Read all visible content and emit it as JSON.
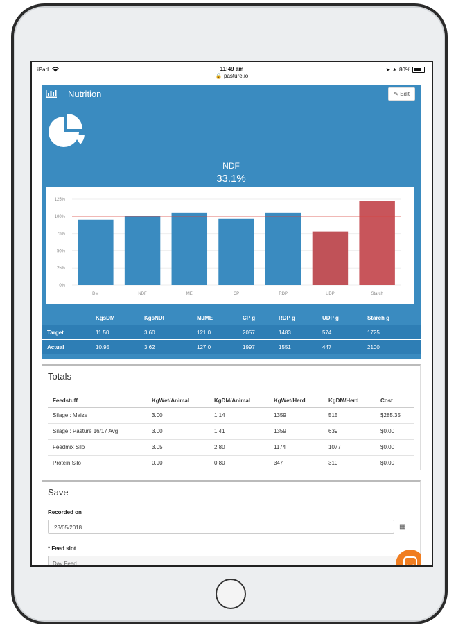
{
  "status_bar": {
    "carrier": "iPad",
    "time": "11:49 am",
    "url": "pasture.io",
    "battery": "80%"
  },
  "panel": {
    "title": "Nutrition",
    "edit_label": "Edit",
    "metric_name": "NDF",
    "metric_value": "33.1%"
  },
  "chart_data": {
    "type": "bar",
    "categories": [
      "DM",
      "NDF",
      "ME",
      "CP",
      "RDP",
      "UDP",
      "Starch"
    ],
    "values": [
      95,
      100,
      105,
      97,
      105,
      78,
      122
    ],
    "bar_colors": [
      "#3a8bc0",
      "#3a8bc0",
      "#3a8bc0",
      "#3a8bc0",
      "#3a8bc0",
      "#c05258",
      "#c8555b"
    ],
    "reference_line": 100,
    "reference_color": "#d9443c",
    "y_ticks": [
      "0%",
      "25%",
      "50%",
      "75%",
      "100%",
      "125%"
    ],
    "ylim": [
      0,
      125
    ]
  },
  "targets_table": {
    "headers": [
      "KgsDM",
      "KgsNDF",
      "MJME",
      "CP g",
      "RDP g",
      "UDP g",
      "Starch g"
    ],
    "rows": [
      {
        "label": "Target",
        "values": [
          "11.50",
          "3.60",
          "121.0",
          "2057",
          "1483",
          "574",
          "1725"
        ]
      },
      {
        "label": "Actual",
        "values": [
          "10.95",
          "3.62",
          "127.0",
          "1997",
          "1551",
          "447",
          "2100"
        ]
      }
    ]
  },
  "totals": {
    "title": "Totals",
    "headers": [
      "Feedstuff",
      "KgWet/Animal",
      "KgDM/Animal",
      "KgWet/Herd",
      "KgDM/Herd",
      "Cost"
    ],
    "rows": [
      [
        "Silage : Maize",
        "3.00",
        "1.14",
        "1359",
        "515",
        "$285.35"
      ],
      [
        "Silage : Pasture 16/17 Avg",
        "3.00",
        "1.41",
        "1359",
        "639",
        "$0.00"
      ],
      [
        "Feedmix Silo",
        "3.05",
        "2.80",
        "1174",
        "1077",
        "$0.00"
      ],
      [
        "Protein Silo",
        "0.90",
        "0.80",
        "347",
        "310",
        "$0.00"
      ]
    ]
  },
  "save": {
    "title": "Save",
    "recorded_on_label": "Recorded on",
    "recorded_on_value": "23/05/2018",
    "feed_slot_label": "* Feed slot",
    "feed_slot_value": "Day Feed"
  },
  "colors": {
    "brand_blue": "#3a8bc0",
    "chat_orange": "#f07d20"
  }
}
